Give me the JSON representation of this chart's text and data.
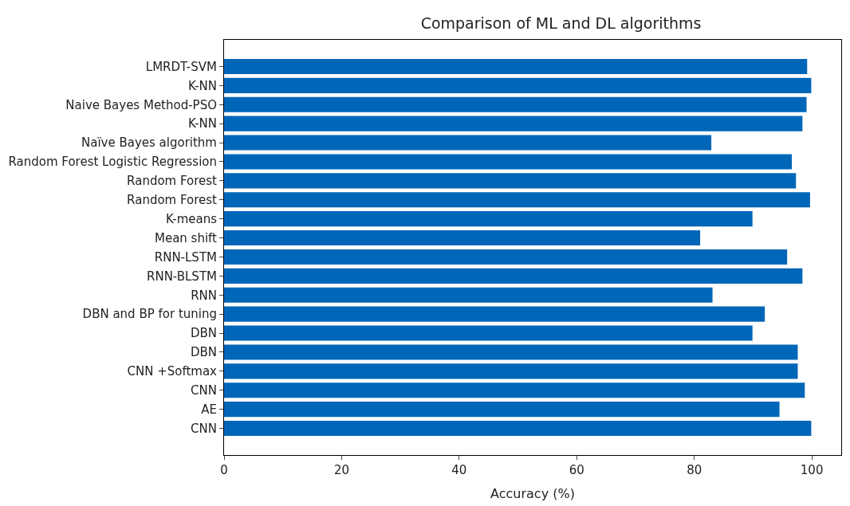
{
  "chart_data": {
    "type": "bar",
    "orientation": "horizontal",
    "title": "Comparison of ML and DL algorithms",
    "xlabel": "Accuracy (%)",
    "categories": [
      "LMRDT-SVM",
      "K-NN",
      "Naive Bayes Method-PSO",
      "K-NN",
      "Naïve Bayes algorithm",
      "Random Forest Logistic Regression",
      "Random Forest",
      "Random Forest",
      "K-means",
      "Mean shift",
      "RNN-LSTM",
      "RNN-BLSTM",
      "RNN",
      "DBN and BP for tuning",
      "DBN",
      "DBN",
      "CNN +Softmax",
      "CNN",
      "AE",
      "CNN"
    ],
    "values": [
      99.2,
      99.9,
      99.1,
      98.4,
      82.9,
      96.6,
      97.3,
      99.7,
      89.9,
      81.0,
      95.8,
      98.4,
      83.1,
      92.0,
      89.9,
      97.6,
      97.6,
      98.8,
      94.5,
      99.9
    ],
    "color": "#0066b8",
    "xlim": [
      0,
      105
    ],
    "xticks": [
      0,
      20,
      40,
      60,
      80,
      100
    ]
  }
}
